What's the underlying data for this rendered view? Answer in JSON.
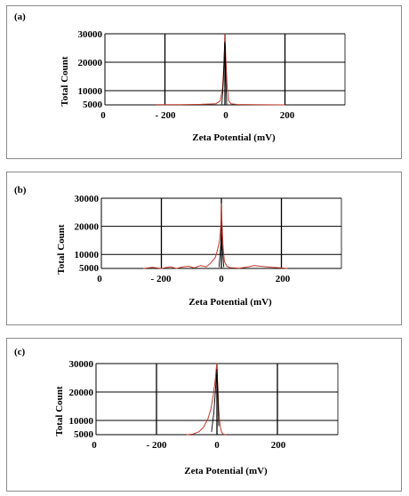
{
  "chart_data": [
    {
      "type": "line",
      "panel_label": "(a)",
      "title": "",
      "xlabel": "Zeta Potential (mV)",
      "ylabel": "Total Count",
      "xlim": [
        -400,
        400
      ],
      "ylim": [
        5000,
        30000
      ],
      "x_ticks": [
        "0",
        "- 200",
        "0",
        "200"
      ],
      "y_ticks": [
        "30000",
        "20000",
        "10000",
        "5000"
      ],
      "grid": true,
      "series": [
        {
          "color": "#c0392b",
          "x": [
            -230,
            -150,
            -80,
            -30,
            -15,
            -8,
            -3,
            0,
            3,
            7,
            12,
            20,
            40,
            100,
            200
          ],
          "y": [
            5050,
            5100,
            5200,
            5400,
            6500,
            11000,
            20000,
            30000,
            21000,
            12000,
            6500,
            5400,
            5150,
            5050,
            5000
          ]
        },
        {
          "color": "#000000",
          "x": [
            -10,
            -5,
            -1,
            1,
            3,
            6
          ],
          "y": [
            5200,
            14000,
            27000,
            26000,
            14000,
            5200
          ]
        }
      ]
    },
    {
      "type": "line",
      "panel_label": "(b)",
      "title": "",
      "xlabel": "Zeta Potential (mV)",
      "ylabel": "Total Count",
      "xlim": [
        -400,
        400
      ],
      "ylim": [
        5000,
        30000
      ],
      "x_ticks": [
        "0",
        "- 200",
        "0",
        "200"
      ],
      "y_ticks": [
        "30000",
        "20000",
        "10000",
        "5000"
      ],
      "grid": true,
      "series": [
        {
          "color": "#c0392b",
          "x": [
            -260,
            -230,
            -200,
            -170,
            -150,
            -130,
            -110,
            -90,
            -70,
            -50,
            -35,
            -20,
            -12,
            -6,
            -2,
            0,
            2,
            6,
            10,
            18,
            30,
            60,
            90,
            110,
            130,
            150,
            170,
            200,
            220
          ],
          "y": [
            5000,
            5400,
            5000,
            5600,
            5000,
            5500,
            5800,
            5200,
            6000,
            5600,
            7000,
            9000,
            12000,
            15000,
            20000,
            28000,
            21000,
            12000,
            7500,
            5800,
            5300,
            5100,
            5600,
            6000,
            5800,
            5600,
            5400,
            5200,
            5000
          ]
        },
        {
          "color": "#000000",
          "x": [
            -8,
            -3,
            0,
            3,
            8
          ],
          "y": [
            5400,
            12000,
            18000,
            12000,
            5400
          ]
        }
      ]
    },
    {
      "type": "line",
      "panel_label": "(c)",
      "title": "",
      "xlabel": "Zeta Potential (mV)",
      "ylabel": "Total Count",
      "xlim": [
        -400,
        400
      ],
      "ylim": [
        5000,
        30000
      ],
      "x_ticks": [
        "0",
        "- 200",
        "0",
        "200"
      ],
      "y_ticks": [
        "30000",
        "20000",
        "10000",
        "5000"
      ],
      "grid": true,
      "series": [
        {
          "color": "#c0392b",
          "x": [
            -100,
            -80,
            -60,
            -45,
            -30,
            -20,
            -12,
            -6,
            -2,
            0,
            2,
            6,
            10,
            15,
            20,
            30
          ],
          "y": [
            5000,
            5200,
            6000,
            7500,
            10500,
            14000,
            19000,
            24000,
            28500,
            30000,
            24000,
            14000,
            8500,
            6000,
            5200,
            5000
          ]
        },
        {
          "color": "#000000",
          "x": [
            -18,
            -10,
            -4,
            0,
            3,
            6
          ],
          "y": [
            6000,
            13000,
            22000,
            28000,
            20000,
            8000
          ]
        }
      ]
    }
  ]
}
